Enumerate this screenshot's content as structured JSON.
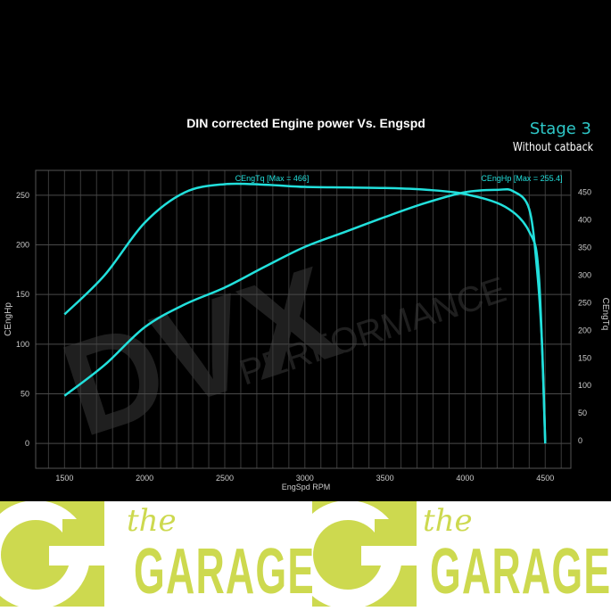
{
  "badge": {
    "stage": "Stage 3",
    "note": "Without catback"
  },
  "banner": {
    "word_small": "the",
    "word_large": "GARAGE",
    "brand_color": "#cdd94f"
  },
  "watermark": {
    "text_large": "DVX",
    "text_small": "PERFORMANCE"
  },
  "chart_data": {
    "type": "line",
    "title": "DIN corrected Engine power Vs. Engspd",
    "xlabel": "EngSpd RPM",
    "ylabel_left": "CEngHp",
    "ylabel_right": "CEngTq",
    "xlim": [
      1320,
      4660
    ],
    "ylim_left": [
      -25,
      275
    ],
    "ylim_right": [
      -50,
      490
    ],
    "xticks": [
      1500,
      2000,
      2500,
      3000,
      3500,
      4000,
      4500
    ],
    "yticks_left": [
      0,
      50,
      100,
      150,
      200,
      250
    ],
    "yticks_right": [
      0,
      50,
      100,
      150,
      200,
      250,
      300,
      350,
      400,
      450
    ],
    "grid": true,
    "line_color": "#22e0dc",
    "series": [
      {
        "name": "CEngTq",
        "axis": "right",
        "label": "CEngTq [Max = 466]",
        "x": [
          1500,
          1750,
          2000,
          2250,
          2500,
          2750,
          3000,
          3250,
          3500,
          3750,
          4000,
          4250,
          4400,
          4460,
          4500
        ],
        "y": [
          229,
          300,
          395,
          450,
          465,
          464,
          460,
          459,
          458,
          455,
          447,
          424,
          379,
          300,
          0
        ]
      },
      {
        "name": "CEngHp",
        "axis": "left",
        "label": "CEngHp [Max = 255.4]",
        "x": [
          1500,
          1750,
          2000,
          2250,
          2500,
          2750,
          3000,
          3250,
          3500,
          3750,
          4000,
          4200,
          4300,
          4400,
          4450,
          4480,
          4500
        ],
        "y": [
          48,
          79,
          117,
          140,
          157,
          178,
          198,
          213,
          228,
          242,
          253,
          255.4,
          254,
          236,
          173,
          100,
          0
        ]
      }
    ]
  }
}
